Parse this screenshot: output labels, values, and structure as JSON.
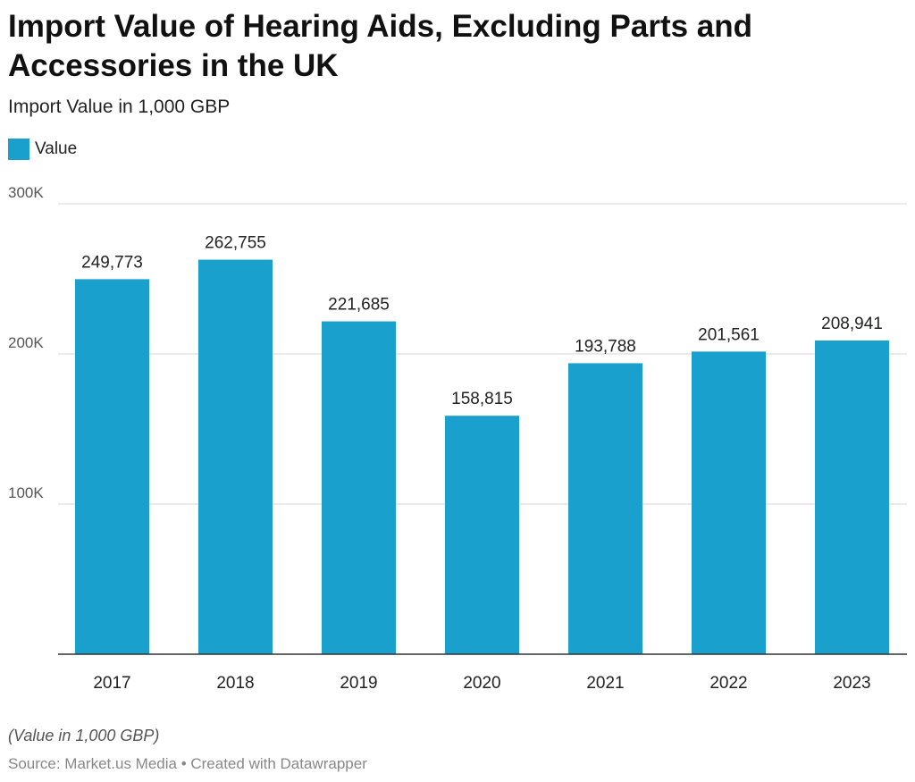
{
  "header": {
    "title": "Import Value of Hearing Aids, Excluding Parts and Accessories in the UK",
    "subtitle": "Import Value in 1,000 GBP"
  },
  "legend": {
    "label": "Value",
    "color": "#1aa0cd"
  },
  "chart_data": {
    "type": "bar",
    "categories": [
      "2017",
      "2018",
      "2019",
      "2020",
      "2021",
      "2022",
      "2023"
    ],
    "series": [
      {
        "name": "Value",
        "values": [
          249773,
          262755,
          221685,
          158815,
          193788,
          201561,
          208941
        ],
        "labels": [
          "249,773",
          "262,755",
          "221,685",
          "158,815",
          "193,788",
          "201,561",
          "208,941"
        ],
        "color": "#1aa0cd"
      }
    ],
    "ylim": [
      0,
      300000
    ],
    "yticks": [
      100000,
      200000,
      300000
    ],
    "ytick_labels": [
      "100K",
      "200K",
      "300K"
    ],
    "grid": true
  },
  "footer": {
    "note": "(Value in 1,000 GBP)",
    "source": "Source: Market.us Media • Created with Datawrapper"
  }
}
